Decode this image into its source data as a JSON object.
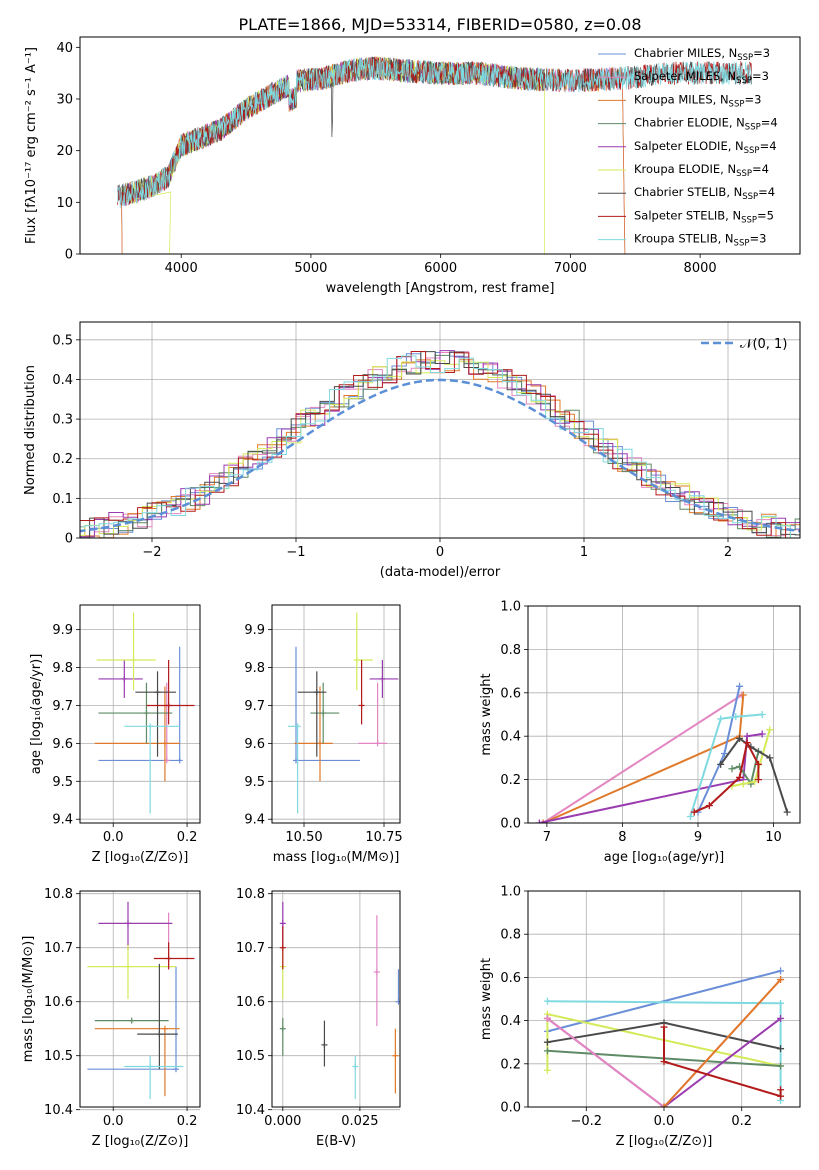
{
  "title": "PLATE=1866, MJD=53314, FIBERID=0580, z=0.08",
  "colors": {
    "chabrier_miles": "#6a8fd8",
    "salpeter_miles": "#e386c1",
    "kroupa_miles": "#e07a2a",
    "chabrier_elodie": "#5e8a66",
    "salpeter_elodie": "#9a3bb0",
    "kroupa_elodie": "#d4ea5a",
    "chabrier_stelib": "#4a4a4a",
    "salpeter_stelib": "#b31b1b",
    "kroupa_stelib": "#7fd9e0",
    "normal": "#5b8fd6"
  },
  "chart_data": [
    {
      "id": "spectrum",
      "type": "line",
      "xlabel": "wavelength [Angstrom, rest frame]",
      "ylabel": "Flux [fλ10⁻¹⁷ erg cm⁻² s⁻¹ A⁻¹]",
      "xlim": [
        3220,
        8770
      ],
      "ylim": [
        0,
        42
      ],
      "xticks": [
        4000,
        5000,
        6000,
        7000,
        8000
      ],
      "yticks": [
        0,
        10,
        20,
        30,
        40
      ],
      "grid": false,
      "legend_position": "right",
      "legend": [
        {
          "key": "chabrier_miles",
          "label": "Chabrier MILES, N",
          "sub": "SSP",
          "suffix": "=3"
        },
        {
          "key": "salpeter_miles",
          "label": "Salpeter MILES, N",
          "sub": "SSP",
          "suffix": "=3"
        },
        {
          "key": "kroupa_miles",
          "label": "Kroupa MILES, N",
          "sub": "SSP",
          "suffix": "=3"
        },
        {
          "key": "chabrier_elodie",
          "label": "Chabrier ELODIE, N",
          "sub": "SSP",
          "suffix": "=4"
        },
        {
          "key": "salpeter_elodie",
          "label": "Salpeter ELODIE, N",
          "sub": "SSP",
          "suffix": "=4"
        },
        {
          "key": "kroupa_elodie",
          "label": "Kroupa ELODIE, N",
          "sub": "SSP",
          "suffix": "=4"
        },
        {
          "key": "chabrier_stelib",
          "label": "Chabrier STELIB, N",
          "sub": "SSP",
          "suffix": "=4"
        },
        {
          "key": "salpeter_stelib",
          "label": "Salpeter STELIB, N",
          "sub": "SSP",
          "suffix": "=5"
        },
        {
          "key": "kroupa_stelib",
          "label": "Kroupa STELIB, N",
          "sub": "SSP",
          "suffix": "=3"
        }
      ],
      "continuum": [
        [
          3500,
          11
        ],
        [
          3650,
          12
        ],
        [
          3800,
          13.5
        ],
        [
          3900,
          15
        ],
        [
          4000,
          21
        ],
        [
          4100,
          22
        ],
        [
          4300,
          24
        ],
        [
          4500,
          28
        ],
        [
          4700,
          31
        ],
        [
          4900,
          33.5
        ],
        [
          5100,
          34
        ],
        [
          5300,
          35.5
        ],
        [
          5500,
          36
        ],
        [
          5700,
          35.5
        ],
        [
          6000,
          35
        ],
        [
          6300,
          35
        ],
        [
          6600,
          34
        ],
        [
          7000,
          33.5
        ],
        [
          7400,
          34
        ],
        [
          7800,
          35
        ],
        [
          8200,
          35
        ],
        [
          8400,
          35
        ]
      ]
    },
    {
      "id": "residuals",
      "type": "histogram",
      "xlabel": "(data-model)/error",
      "ylabel": "Normed distribution",
      "xlim": [
        -2.5,
        2.5
      ],
      "ylim": [
        0,
        0.545
      ],
      "xticks": [
        -2,
        -1,
        0,
        1,
        2
      ],
      "yticks": [
        0,
        0.1,
        0.2,
        0.3,
        0.4,
        0.5
      ],
      "grid": true,
      "legend_position": "upper right",
      "normal_label": "𝒩(0, 1)",
      "bin_width": 0.1
    },
    {
      "id": "age_vs_Z",
      "type": "errorbar",
      "xlabel": "Z [log₁₀(Z/Z⊙)]",
      "ylabel": "age  [log₁₀(age/yr)]",
      "xlim": [
        -0.09,
        0.235
      ],
      "ylim": [
        9.39,
        9.965
      ],
      "xticks": [
        0.0,
        0.2
      ],
      "yticks": [
        9.4,
        9.5,
        9.6,
        9.7,
        9.8,
        9.9
      ],
      "grid": true,
      "points": [
        {
          "key": "chabrier_miles",
          "x": 0.18,
          "xerr": [
            0.22,
            0
          ],
          "y": 9.555,
          "yerr": [
            0,
            0.3
          ]
        },
        {
          "key": "salpeter_miles",
          "x": 0.145,
          "xerr": [
            0.0,
            0.0
          ],
          "y": 9.555,
          "yerr": [
            0.0,
            0.205
          ]
        },
        {
          "key": "kroupa_miles",
          "x": 0.14,
          "xerr": [
            0.19,
            0.04
          ],
          "y": 9.6,
          "yerr": [
            0.1,
            0.15
          ]
        },
        {
          "key": "chabrier_elodie",
          "x": 0.09,
          "xerr": [
            0.13,
            0.07
          ],
          "y": 9.68,
          "yerr": [
            0.08,
            0.08
          ]
        },
        {
          "key": "salpeter_elodie",
          "x": 0.03,
          "xerr": [
            0.07,
            0.05
          ],
          "y": 9.77,
          "yerr": [
            0.05,
            0.05
          ]
        },
        {
          "key": "kroupa_elodie",
          "x": 0.055,
          "xerr": [
            0.1,
            0.06
          ],
          "y": 9.82,
          "yerr": [
            0.08,
            0.125
          ]
        },
        {
          "key": "chabrier_stelib",
          "x": 0.12,
          "xerr": [
            0.06,
            0.05
          ],
          "y": 9.735,
          "yerr": [
            0.17,
            0.055
          ]
        },
        {
          "key": "salpeter_stelib",
          "x": 0.15,
          "xerr": [
            0.06,
            0.07
          ],
          "y": 9.7,
          "yerr": [
            0.05,
            0.12
          ]
        },
        {
          "key": "kroupa_stelib",
          "x": 0.1,
          "xerr": [
            0.07,
            0.08
          ],
          "y": 9.645,
          "yerr": [
            0.23,
            0.0
          ]
        }
      ]
    },
    {
      "id": "age_vs_mass",
      "type": "errorbar",
      "xlabel": "mass [log₁₀(M/M⊙)]",
      "ylabel": "",
      "xlim": [
        10.4,
        10.8
      ],
      "ylim": [
        9.39,
        9.965
      ],
      "xticks": [
        10.5,
        10.75
      ],
      "yticks": [
        9.4,
        9.5,
        9.6,
        9.7,
        9.8,
        9.9
      ],
      "grid": true,
      "points": [
        {
          "key": "chabrier_miles",
          "x": 10.475,
          "xerr": [
            0.0,
            0.2
          ],
          "y": 9.555,
          "yerr": [
            0,
            0.3
          ]
        },
        {
          "key": "salpeter_miles",
          "x": 10.73,
          "xerr": [
            0.06,
            0.03
          ],
          "y": 9.6,
          "yerr": [
            0.0,
            0.16
          ]
        },
        {
          "key": "kroupa_miles",
          "x": 10.55,
          "xerr": [
            0.08,
            0.04
          ],
          "y": 9.6,
          "yerr": [
            0.1,
            0.15
          ]
        },
        {
          "key": "chabrier_elodie",
          "x": 10.56,
          "xerr": [
            0.04,
            0.05
          ],
          "y": 9.68,
          "yerr": [
            0.08,
            0.08
          ]
        },
        {
          "key": "salpeter_elodie",
          "x": 10.745,
          "xerr": [
            0.04,
            0.05
          ],
          "y": 9.77,
          "yerr": [
            0.05,
            0.05
          ]
        },
        {
          "key": "kroupa_elodie",
          "x": 10.665,
          "xerr": [
            0.0,
            0.05
          ],
          "y": 9.82,
          "yerr": [
            0.08,
            0.125
          ]
        },
        {
          "key": "chabrier_stelib",
          "x": 10.54,
          "xerr": [
            0.06,
            0.03
          ],
          "y": 9.735,
          "yerr": [
            0.17,
            0.055
          ]
        },
        {
          "key": "salpeter_stelib",
          "x": 10.68,
          "xerr": [
            0.0,
            0.0
          ],
          "y": 9.7,
          "yerr": [
            0.05,
            0.12
          ]
        },
        {
          "key": "kroupa_stelib",
          "x": 10.48,
          "xerr": [
            0.03,
            0.0
          ],
          "y": 9.645,
          "yerr": [
            0.23,
            0.0
          ]
        }
      ]
    },
    {
      "id": "weight_vs_age",
      "type": "line",
      "xlabel": "age  [log₁₀(age/yr)]",
      "ylabel": "mass weight",
      "xlim": [
        6.75,
        10.35
      ],
      "ylim": [
        0,
        1.0
      ],
      "xticks": [
        7,
        8,
        9,
        10
      ],
      "yticks": [
        0.0,
        0.2,
        0.4,
        0.6,
        0.8,
        1.0
      ],
      "grid": true,
      "series": [
        {
          "key": "salpeter_miles",
          "points": [
            [
              6.95,
              0
            ],
            [
              9.58,
              0.59
            ]
          ]
        },
        {
          "key": "kroupa_miles",
          "points": [
            [
              6.95,
              0
            ],
            [
              9.55,
              0.4
            ],
            [
              9.6,
              0.59
            ]
          ]
        },
        {
          "key": "salpeter_elodie",
          "points": [
            [
              6.9,
              0
            ],
            [
              9.6,
              0.2
            ],
            [
              9.65,
              0.4
            ],
            [
              9.85,
              0.41
            ]
          ]
        },
        {
          "key": "chabrier_miles",
          "points": [
            [
              9.0,
              0.05
            ],
            [
              9.35,
              0.32
            ],
            [
              9.55,
              0.63
            ]
          ]
        },
        {
          "key": "kroupa_stelib",
          "points": [
            [
              8.9,
              0.03
            ],
            [
              9.3,
              0.48
            ],
            [
              9.5,
              0.49
            ],
            [
              9.85,
              0.5
            ]
          ]
        },
        {
          "key": "chabrier_elodie",
          "points": [
            [
              9.45,
              0.25
            ],
            [
              9.55,
              0.26
            ],
            [
              9.7,
              0.18
            ],
            [
              9.8,
              0.33
            ]
          ]
        },
        {
          "key": "kroupa_elodie",
          "points": [
            [
              9.45,
              0.17
            ],
            [
              9.6,
              0.18
            ],
            [
              9.75,
              0.19
            ],
            [
              9.95,
              0.43
            ]
          ]
        },
        {
          "key": "chabrier_stelib",
          "points": [
            [
              9.3,
              0.27
            ],
            [
              9.55,
              0.39
            ],
            [
              9.7,
              0.35
            ],
            [
              9.95,
              0.3
            ],
            [
              10.18,
              0.05
            ]
          ]
        },
        {
          "key": "salpeter_stelib",
          "points": [
            [
              8.95,
              0.05
            ],
            [
              9.15,
              0.08
            ],
            [
              9.55,
              0.21
            ],
            [
              9.65,
              0.37
            ],
            [
              9.8,
              0.27
            ],
            [
              9.8,
              0.2
            ]
          ]
        }
      ]
    },
    {
      "id": "mass_vs_Z",
      "type": "errorbar",
      "xlabel": "Z [log₁₀(Z/Z⊙)]",
      "ylabel": "mass [log₁₀(M/M⊙)]",
      "xlim": [
        -0.09,
        0.235
      ],
      "ylim": [
        10.405,
        10.805
      ],
      "xticks": [
        0.0,
        0.2
      ],
      "yticks": [
        10.4,
        10.5,
        10.6,
        10.7,
        10.8
      ],
      "grid": true,
      "points": [
        {
          "key": "chabrier_miles",
          "x": 0.17,
          "xerr": [
            0.24,
            0.0
          ],
          "y": 10.475,
          "yerr": [
            0.0,
            0.19
          ]
        },
        {
          "key": "salpeter_miles",
          "x": 0.15,
          "xerr": [
            0.0,
            0.0
          ],
          "y": 10.665,
          "yerr": [
            0.0,
            0.1
          ]
        },
        {
          "key": "kroupa_miles",
          "x": 0.14,
          "xerr": [
            0.19,
            0.04
          ],
          "y": 10.55,
          "yerr": [
            0.125,
            0.0
          ]
        },
        {
          "key": "chabrier_elodie",
          "x": 0.05,
          "xerr": [
            0.1,
            0.1
          ],
          "y": 10.565,
          "yerr": [
            0.0,
            0.0
          ]
        },
        {
          "key": "salpeter_elodie",
          "x": 0.04,
          "xerr": [
            0.08,
            0.12
          ],
          "y": 10.745,
          "yerr": [
            0.05,
            0.04
          ]
        },
        {
          "key": "kroupa_elodie",
          "x": 0.04,
          "xerr": [
            0.11,
            0.13
          ],
          "y": 10.665,
          "yerr": [
            0.06,
            0.04
          ]
        },
        {
          "key": "chabrier_stelib",
          "x": 0.125,
          "xerr": [
            0.06,
            0.05
          ],
          "y": 10.54,
          "yerr": [
            0.065,
            0.13
          ]
        },
        {
          "key": "salpeter_stelib",
          "x": 0.15,
          "xerr": [
            0.04,
            0.07
          ],
          "y": 10.68,
          "yerr": [
            0.02,
            0.03
          ]
        },
        {
          "key": "kroupa_stelib",
          "x": 0.1,
          "xerr": [
            0.07,
            0.09
          ],
          "y": 10.48,
          "yerr": [
            0.06,
            0.02
          ]
        }
      ]
    },
    {
      "id": "mass_vs_ebv",
      "type": "errorbar",
      "xlabel": "E(B-V)",
      "ylabel": "",
      "xlim": [
        -0.0035,
        0.038
      ],
      "ylim": [
        10.405,
        10.805
      ],
      "xticks": [
        0.0,
        0.025
      ],
      "yticks": [
        10.4,
        10.5,
        10.6,
        10.7,
        10.8
      ],
      "grid": true,
      "points": [
        {
          "key": "salpeter_elodie",
          "x": 0.0,
          "y": 10.745,
          "yerr": [
            0.045,
            0.04
          ]
        },
        {
          "key": "kroupa_elodie",
          "x": 0.0,
          "y": 10.665,
          "yerr": [
            0.06,
            0.04
          ]
        },
        {
          "key": "salpeter_stelib",
          "x": 0.0,
          "y": 10.7,
          "yerr": [
            0.04,
            0.04
          ]
        },
        {
          "key": "chabrier_elodie",
          "x": 0.0,
          "y": 10.55,
          "yerr": [
            0.05,
            0.02
          ]
        },
        {
          "key": "chabrier_stelib",
          "x": 0.0135,
          "y": 10.52,
          "yerr": [
            0.04,
            0.045
          ]
        },
        {
          "key": "kroupa_stelib",
          "x": 0.0235,
          "y": 10.48,
          "yerr": [
            0.06,
            0.02
          ]
        },
        {
          "key": "salpeter_miles",
          "x": 0.0305,
          "y": 10.655,
          "yerr": [
            0.1,
            0.105
          ]
        },
        {
          "key": "kroupa_miles",
          "x": 0.0365,
          "y": 10.5,
          "yerr": [
            0.07,
            0.05
          ]
        },
        {
          "key": "chabrier_miles",
          "x": 0.0375,
          "y": 10.6,
          "yerr": [
            0.0,
            0.06
          ]
        }
      ]
    },
    {
      "id": "weight_vs_Z",
      "type": "line",
      "xlabel": "Z [log₁₀(Z/Z⊙)]",
      "ylabel": "mass weight",
      "xlim": [
        -0.35,
        0.35
      ],
      "ylim": [
        0,
        1.0
      ],
      "xticks": [
        -0.2,
        0.0,
        0.2
      ],
      "yticks": [
        0.0,
        0.2,
        0.4,
        0.6,
        0.8,
        1.0
      ],
      "grid": true,
      "series": [
        {
          "key": "chabrier_miles",
          "points": [
            [
              -0.3,
              0.35
            ],
            [
              0.3,
              0.63
            ]
          ]
        },
        {
          "key": "kroupa_stelib",
          "points": [
            [
              -0.3,
              0.49
            ],
            [
              0.3,
              0.48
            ],
            [
              0.3,
              0.03
            ]
          ]
        },
        {
          "key": "kroupa_elodie",
          "points": [
            [
              -0.3,
              0.17
            ],
            [
              -0.3,
              0.43
            ],
            [
              0.3,
              0.19
            ]
          ]
        },
        {
          "key": "chabrier_elodie",
          "points": [
            [
              -0.3,
              0.26
            ],
            [
              0.3,
              0.19
            ]
          ]
        },
        {
          "key": "chabrier_stelib",
          "points": [
            [
              -0.3,
              0.3
            ],
            [
              0.0,
              0.39
            ],
            [
              0.3,
              0.27
            ]
          ]
        },
        {
          "key": "salpeter_elodie",
          "points": [
            [
              -0.3,
              0.41
            ],
            [
              0.0,
              0.0
            ],
            [
              0.3,
              0.41
            ]
          ]
        },
        {
          "key": "salpeter_miles",
          "points": [
            [
              -0.3,
              0.41
            ],
            [
              0.0,
              0.0
            ],
            [
              0.3,
              0.59
            ]
          ]
        },
        {
          "key": "kroupa_miles",
          "points": [
            [
              0.0,
              0.0
            ],
            [
              0.3,
              0.59
            ]
          ]
        },
        {
          "key": "salpeter_stelib",
          "points": [
            [
              0.0,
              0.37
            ],
            [
              0.0,
              0.21
            ],
            [
              0.3,
              0.05
            ],
            [
              0.3,
              0.08
            ]
          ]
        }
      ]
    }
  ]
}
